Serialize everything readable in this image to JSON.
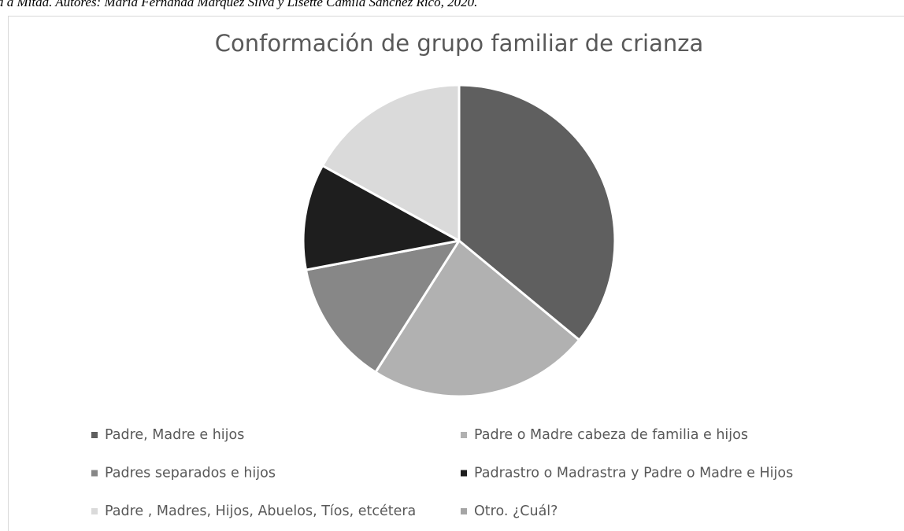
{
  "caption": "a a Mitad. Autores: María Fernanda Márquez Silva y Lisette Camila Sánchez Rico, 2020.",
  "chart_data": {
    "type": "pie",
    "title": "Conformación de grupo familiar de crianza",
    "categories": [
      "Padre, Madre e hijos",
      "Padre o Madre cabeza de familia e hijos",
      "Padres separados e hijos",
      "Padrastro o Madrastra y Padre o Madre e Hijos",
      "Padre , Madres, Hijos, Abuelos, Tíos, etcétera",
      "Otro. ¿Cuál?"
    ],
    "values": [
      36,
      23,
      13,
      11,
      17,
      0
    ],
    "colors": [
      "#5f5f5f",
      "#b1b1b1",
      "#878787",
      "#1e1e1e",
      "#dadada",
      "#a5a5a5"
    ]
  }
}
